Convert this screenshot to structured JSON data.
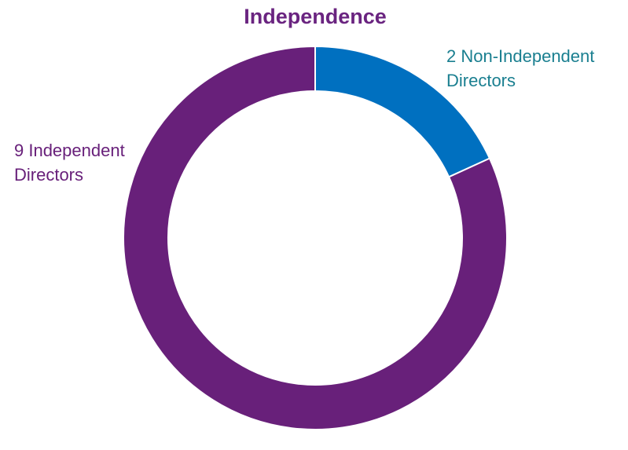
{
  "chart_data": {
    "type": "donut",
    "title": "Independence",
    "values": [
      2,
      9
    ],
    "value_labels": [
      "2 Non-Independent Directors",
      "9 Independent Directors"
    ],
    "colors": [
      "#0070c0",
      "#68207a"
    ],
    "label_colors": [
      "#1a7f90",
      "#68207a"
    ]
  }
}
